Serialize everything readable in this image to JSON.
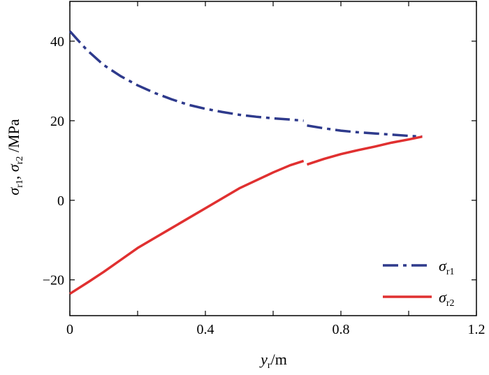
{
  "chart_data": {
    "type": "line",
    "title": "",
    "xlabel": {
      "symbol": "y",
      "sub": "r",
      "unit": "/m"
    },
    "ylabel": {
      "s1": "σ",
      "sub1": "r1",
      "sep": ", ",
      "s2": "σ",
      "sub2": "r2",
      "unit": " /MPa"
    },
    "xlim": [
      0,
      1.2
    ],
    "ylim": [
      -29,
      50
    ],
    "xticks": [
      0,
      0.2,
      0.4,
      0.6,
      0.8,
      1.0,
      1.2
    ],
    "xtick_labels": [
      "0",
      "",
      "0.4",
      "",
      "0.8",
      "",
      "1.2"
    ],
    "yticks": [
      -20,
      0,
      20,
      40
    ],
    "ytick_labels": [
      "−20",
      "0",
      "20",
      "40"
    ],
    "grid": false,
    "legend_position": "bottom-right",
    "series": [
      {
        "name": "σ_r1",
        "legend": {
          "symbol": "σ",
          "sub": "r1"
        },
        "color": "#2e3a8c",
        "style": "dashdot",
        "segments": [
          {
            "x": [
              0,
              0.05,
              0.1,
              0.15,
              0.2,
              0.25,
              0.3,
              0.35,
              0.4,
              0.45,
              0.5,
              0.55,
              0.6,
              0.65,
              0.69
            ],
            "y": [
              42.5,
              37.8,
              34.0,
              31.2,
              28.9,
              27.0,
              25.4,
              24.0,
              23.0,
              22.2,
              21.5,
              21.0,
              20.6,
              20.3,
              20.0
            ]
          },
          {
            "x": [
              0.7,
              0.75,
              0.8,
              0.85,
              0.9,
              0.95,
              1.0,
              1.04
            ],
            "y": [
              18.8,
              18.1,
              17.5,
              17.1,
              16.8,
              16.5,
              16.2,
              16.0
            ]
          }
        ]
      },
      {
        "name": "σ_r2",
        "legend": {
          "symbol": "σ",
          "sub": "r2"
        },
        "color": "#e03030",
        "style": "solid",
        "segments": [
          {
            "x": [
              0,
              0.05,
              0.1,
              0.15,
              0.2,
              0.25,
              0.3,
              0.35,
              0.4,
              0.45,
              0.5,
              0.55,
              0.6,
              0.65,
              0.69
            ],
            "y": [
              -23.5,
              -20.8,
              -18.0,
              -15.0,
              -12.0,
              -9.5,
              -7.0,
              -4.5,
              -2.0,
              0.5,
              3.0,
              5.0,
              7.0,
              8.8,
              9.9
            ]
          },
          {
            "x": [
              0.7,
              0.75,
              0.8,
              0.85,
              0.9,
              0.95,
              1.0,
              1.04
            ],
            "y": [
              9.0,
              10.4,
              11.6,
              12.6,
              13.5,
              14.5,
              15.3,
              16.0
            ]
          }
        ]
      }
    ]
  }
}
